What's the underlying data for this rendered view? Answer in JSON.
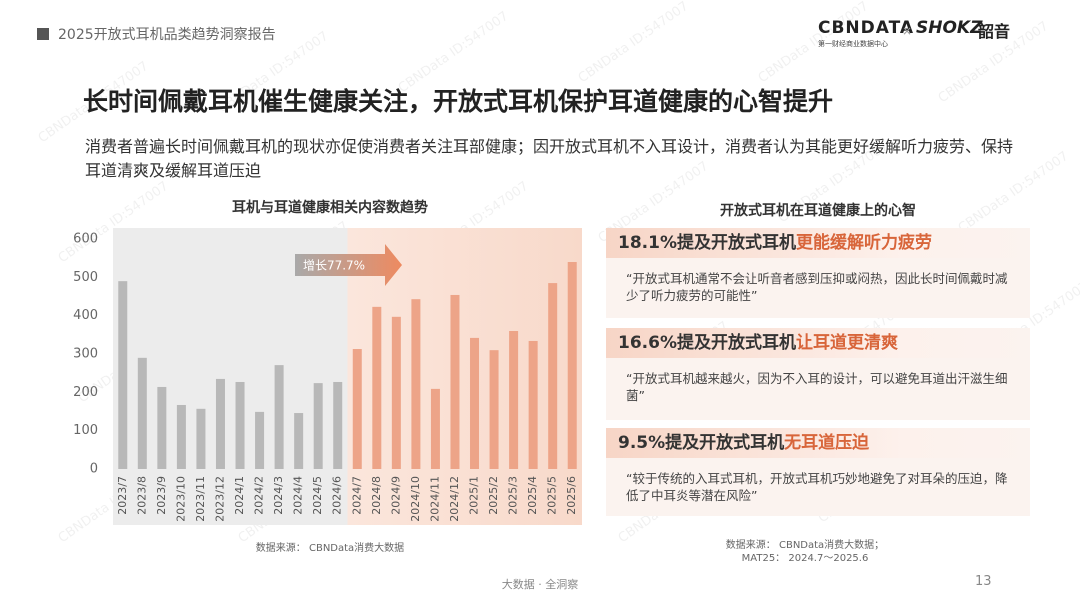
{
  "header": {
    "report_title": "2025开放式耳机品类趋势洞察报告",
    "logo_main": "CBNDATA",
    "logo_sub": "第一财经商业数据中心",
    "logo_x": "×",
    "logo_brand": "SHOKZ",
    "logo_brand_cn": "韶音"
  },
  "title": "长时间佩戴耳机催生健康关注，开放式耳机保护耳道健康的心智提升",
  "subtitle": "消费者普遍长时间佩戴耳机的现状亦促使消费者关注耳部健康；因开放式耳机不入耳设计，消费者认为其能更好缓解听力疲劳、保持耳道清爽及缓解耳道压迫",
  "chart_data": {
    "type": "bar",
    "title": "耳机与耳道健康相关内容数趋势",
    "categories": [
      "2023/7",
      "2023/8",
      "2023/9",
      "2023/10",
      "2023/11",
      "2023/12",
      "2024/1",
      "2024/2",
      "2024/3",
      "2024/4",
      "2024/5",
      "2024/6",
      "2024/7",
      "2024/8",
      "2024/9",
      "2024/10",
      "2024/11",
      "2024/12",
      "2025/1",
      "2025/2",
      "2025/3",
      "2025/4",
      "2025/5",
      "2025/6"
    ],
    "values": [
      490,
      290,
      214,
      167,
      157,
      235,
      227,
      149,
      271,
      146,
      224,
      227,
      313,
      423,
      397,
      443,
      209,
      454,
      342,
      310,
      360,
      334,
      485,
      540
    ],
    "colors": [
      "#b8b8b8",
      "#b8b8b8",
      "#b8b8b8",
      "#b8b8b8",
      "#b8b8b8",
      "#b8b8b8",
      "#b8b8b8",
      "#b8b8b8",
      "#b8b8b8",
      "#b8b8b8",
      "#b8b8b8",
      "#b8b8b8",
      "#eda488",
      "#eda488",
      "#eda488",
      "#eda488",
      "#eda488",
      "#eda488",
      "#eda488",
      "#eda488",
      "#eda488",
      "#eda488",
      "#eda488",
      "#eda488"
    ],
    "ylim": [
      0,
      600
    ],
    "yticks": [
      0,
      100,
      200,
      300,
      400,
      500,
      600
    ],
    "annotation": "增长77.7%",
    "source": "数据来源： CBNData消费大数据"
  },
  "insights": {
    "title": "开放式耳机在耳道健康上的心智",
    "items": [
      {
        "lead": "18.1%提及开放式耳机",
        "highlight": "更能缓解听力疲劳",
        "quote": "“开放式耳机通常不会让听音者感到压抑或闷热，因此长时间佩戴时减少了听力疲劳的可能性”"
      },
      {
        "lead": "16.6%提及开放式耳机",
        "highlight": "让耳道更清爽",
        "quote": "“开放式耳机越来越火，因为不入耳的设计，可以避免耳道出汗滋生细菌”"
      },
      {
        "lead": "9.5%提及开放式耳机",
        "highlight": "无耳道压迫",
        "quote": "“较于传统的入耳式耳机，开放式耳机巧妙地避免了对耳朵的压迫，降低了中耳炎等潜在风险”"
      }
    ],
    "source": [
      "数据来源： CBNData消费大数据；",
      "MAT25： 2024.7～2025.6"
    ]
  },
  "footer": {
    "tagline": "大数据 · 全洞察",
    "page": "13"
  },
  "watermark": "CBNData ID:547007"
}
